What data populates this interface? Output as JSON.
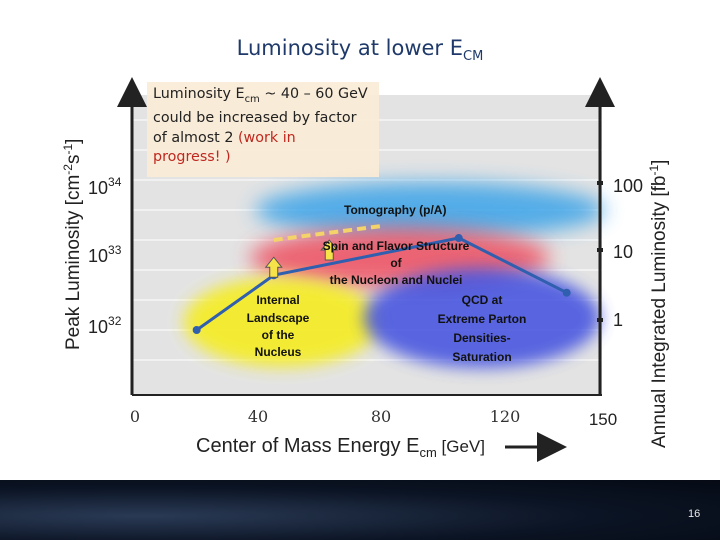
{
  "slide": {
    "title": "Luminosity at lower E",
    "title_sub": "CM",
    "page_number": "16"
  },
  "note": {
    "line1_pre": "Luminosity E",
    "line1_sub": "cm",
    "line1_post": " ~ 40 – 60 GeV",
    "line2": "could be increased by factor",
    "line3_pre": "of almost 2 ",
    "line3_red": "(work in",
    "line4_red": "progress! )"
  },
  "regions": {
    "tomography": "Tomography (p/A)",
    "spin_l1": "Spin and Flavor Structure",
    "spin_l2": "of",
    "spin_l3": "the Nucleon and Nuclei",
    "internal_l1": "Internal",
    "internal_l2": "Landscape",
    "internal_l3": "of the",
    "internal_l4": "Nucleus",
    "qcd_l1": "QCD at",
    "qcd_l2": "Extreme Parton",
    "qcd_l3": "Densities-",
    "qcd_l4": "Saturation"
  },
  "axes": {
    "x_label": "Center of Mass Energy E",
    "x_label_sub": "cm",
    "x_label_unit": " [GeV]",
    "x_ticks": [
      "0",
      "40",
      "80",
      "120",
      "150"
    ],
    "y_left_label": "Peak Luminosity [cm",
    "y_left_sup1": "-2",
    "y_left_mid": "s",
    "y_left_sup2": "-1",
    "y_left_end": "]",
    "y_left_ticks": [
      {
        "base": "10",
        "exp": "34"
      },
      {
        "base": "10",
        "exp": "33"
      },
      {
        "base": "10",
        "exp": "32"
      }
    ],
    "y_right_label": "Annual Integrated Luminosity [fb",
    "y_right_sup": "-1",
    "y_right_end": "]",
    "y_right_ticks": [
      "100",
      "10",
      "1"
    ]
  },
  "colors": {
    "line": "#2f5fae",
    "tomography_blob": "#3aa3e8",
    "spin_blob": "#ee5060",
    "internal_blob": "#f4ec2a",
    "qcd_blob": "#3f4fe0",
    "arrow_fill": "#f6e34a",
    "dashed_upgrade": "#f3d36a",
    "title": "#1f3a6a"
  },
  "chart_data": {
    "type": "line",
    "xlabel": "Center of Mass Energy Ecm [GeV]",
    "ylabel": "Peak Luminosity [cm-2s-1]",
    "y2label": "Annual Integrated Luminosity [fb-1]",
    "xlim": [
      0,
      150
    ],
    "y_log": true,
    "ylim": [
      1e+31,
      3e+34
    ],
    "series": [
      {
        "x": [
          20,
          45,
          105,
          140
        ],
        "y": [
          1e+32,
          6.3e+32,
          2.2e+33,
          3.5e+32
        ]
      }
    ],
    "upgrade_markers_x": [
      45,
      63
    ],
    "upgrade_dashed_x": [
      45,
      80
    ],
    "upgrade_dashed_y": 3.3e+33
  }
}
